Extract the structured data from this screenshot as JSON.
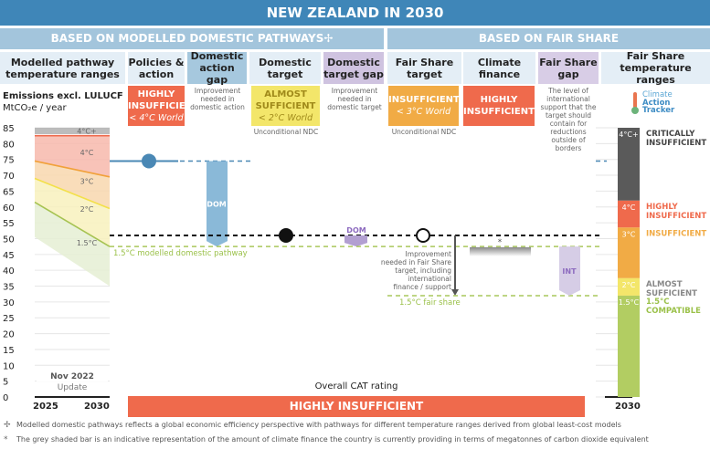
{
  "title": "NEW ZEALAND IN 2030",
  "sections": {
    "domestic": "BASED ON MODELLED DOMESTIC PATHWAYS✢",
    "fair": "BASED ON FAIR SHARE"
  },
  "columns": [
    "Modelled pathway temperature ranges",
    "Policies & action",
    "Domestic action gap",
    "Domestic target",
    "Domestic target gap",
    "Fair Share target",
    "Climate finance",
    "Fair Share gap",
    "Fair Share temperature ranges"
  ],
  "ratings": {
    "policies": {
      "label": "HIGHLY INSUFFICIENT",
      "sub": "< 4°C World",
      "color": "#ef6a4c"
    },
    "domestic_target": {
      "label": "ALMOST SUFFICIENT",
      "sub": "< 2°C World",
      "note": "Unconditional NDC",
      "color": "#f3e66a"
    },
    "fair_share_target": {
      "label": "INSUFFICIENT",
      "sub": "< 3°C World",
      "note": "Unconditional NDC",
      "color": "#f1ab45"
    },
    "climate_finance": {
      "label": "HIGHLY INSUFFICIENT",
      "color": "#ef6a4c"
    }
  },
  "notes": {
    "dom_action_gap": "Improvement needed in domestic action",
    "dom_target_gap": "Improvement needed in domestic target",
    "fair_share_gap": "The level of international support that the target should contain for reductions outside of borders",
    "fs_improvement": "Improvement needed in Fair Share target, including international finance / support"
  },
  "logo": {
    "line1": "Climate",
    "line2": "Action",
    "line3": "Tracker"
  },
  "chart_data": {
    "type": "range-chart",
    "ylabel": "Emissions excl. LULUCF",
    "yunit": "MtCO₂e / year",
    "ylim": [
      0,
      85
    ],
    "yticks": [
      0,
      5,
      10,
      15,
      20,
      25,
      30,
      35,
      40,
      45,
      50,
      55,
      60,
      65,
      70,
      75,
      80,
      85
    ],
    "x": [
      "2025",
      "2030"
    ],
    "pathway_bands": [
      {
        "name": "4°C+",
        "top": [
          85,
          85
        ],
        "bottom": [
          83,
          83
        ],
        "color": "#b0b0b0"
      },
      {
        "name": "4°C",
        "top": [
          82.5,
          82.5
        ],
        "bottom": [
          74.5,
          69.5
        ],
        "color": "#f7b9ac"
      },
      {
        "name": "3°C",
        "top": [
          74.5,
          69.5
        ],
        "bottom": [
          69,
          59.5
        ],
        "color": "#f8d7ae"
      },
      {
        "name": "2°C",
        "top": [
          69,
          59.5
        ],
        "bottom": [
          61.5,
          47.5
        ],
        "color": "#f8f1bd"
      },
      {
        "name": "1.5°C",
        "top": [
          61.5,
          47.5
        ],
        "bottom": [
          50.5,
          35
        ],
        "color": "#e5eed4"
      }
    ],
    "policies_value": 74.5,
    "domestic_target_value": 51,
    "modelled_1_5_pathway": 47.5,
    "modelled_1_5_label": "1.5°C modelled domestic pathway",
    "fair_share_1_5": 32,
    "fair_share_1_5_label": "1.5°C fair share",
    "climate_finance_value": 47,
    "gap_labels": {
      "dom": "DOM",
      "int": "INT"
    },
    "fair_share_ranges": [
      {
        "name": "4°C+",
        "rating": "CRITICALLY INSUFFICIENT",
        "from": 62,
        "to": 85,
        "color": "#5a5a5a",
        "text": "#444"
      },
      {
        "name": "4°C",
        "rating": "HIGHLY INSUFFICIENT",
        "from": 53.5,
        "to": 62,
        "color": "#ef6a4c",
        "text": "#ef6a4c"
      },
      {
        "name": "3°C",
        "rating": "INSUFFICIENT",
        "from": 37.5,
        "to": 53.5,
        "color": "#f1ab45",
        "text": "#f1ab45"
      },
      {
        "name": "2°C",
        "rating": "ALMOST SUFFICIENT",
        "from": 32,
        "to": 37.5,
        "color": "#f3e66a",
        "text": "#888"
      },
      {
        "name": "1.5°C",
        "rating": "1.5°C COMPATIBLE",
        "from": 0,
        "to": 32,
        "color": "#b2cd62",
        "text": "#9bc14a"
      }
    ],
    "fs_year": "2030"
  },
  "update": {
    "line1": "Nov 2022",
    "line2": "Update"
  },
  "overall": {
    "label": "Overall CAT rating",
    "rating": "HIGHLY INSUFFICIENT",
    "color": "#ef6a4c"
  },
  "footnotes": [
    {
      "sym": "✢",
      "text": "Modelled domestic pathways reflects a global economic efficiency perspective with pathways for different temperature ranges derived from global least-cost models"
    },
    {
      "sym": "*",
      "text": "The grey shaded bar is an indicative representation of the amount of climate finance the country is currently providing in terms of megatonnes of carbon dioxide equivalent"
    }
  ]
}
